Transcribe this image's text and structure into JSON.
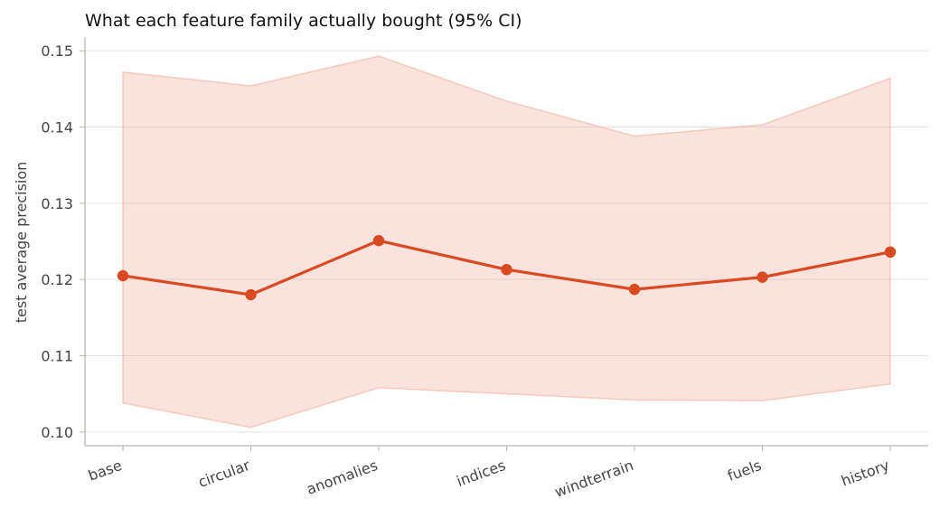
{
  "chart_data": {
    "type": "line",
    "title": "What each feature family actually bought (95% CI)",
    "xlabel": "",
    "ylabel": "test average precision",
    "categories": [
      "base",
      "circular",
      "anomalies",
      "indices",
      "windterrain",
      "fuels",
      "history"
    ],
    "series": [
      {
        "values": [
          0.1205,
          0.118,
          0.1251,
          0.1213,
          0.1187,
          0.1203,
          0.1236
        ],
        "ci_lower": [
          0.1038,
          0.1006,
          0.1058,
          0.105,
          0.1042,
          0.1041,
          0.1063
        ],
        "ci_upper": [
          0.1472,
          0.1454,
          0.1493,
          0.1434,
          0.1388,
          0.1403,
          0.1464
        ]
      }
    ],
    "ylim": [
      0.0982,
      0.1518
    ],
    "yticks": [
      "0.10",
      "0.11",
      "0.12",
      "0.13",
      "0.14",
      "0.15"
    ],
    "grid": "horizontal",
    "legend": "none",
    "colors": {
      "line": "#d94a22",
      "band": "#f0a995",
      "grid": "#e2e2e2",
      "axis": "#b8b8b0"
    }
  }
}
